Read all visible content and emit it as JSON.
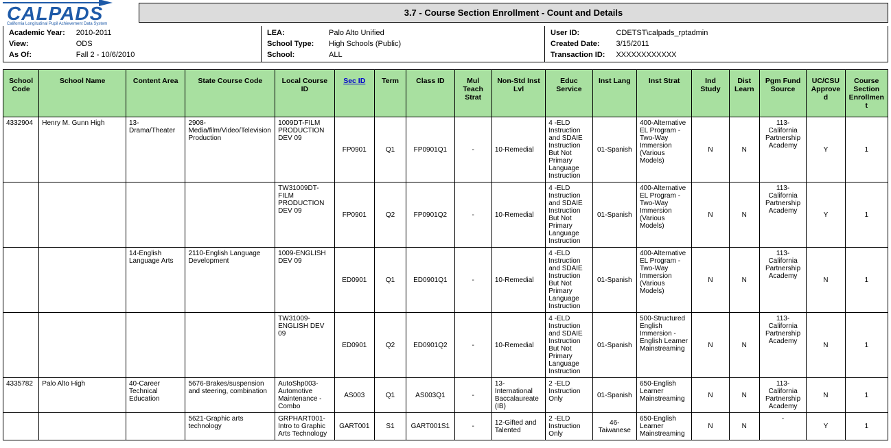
{
  "app": {
    "logo_text": "CALPADS",
    "logo_sub": "California Longitudinal Pupil Achievement Data System",
    "report_title": "3.7 - Course Section Enrollment - Count and Details"
  },
  "meta": {
    "col1": [
      {
        "label": "Academic Year:",
        "value": "2010-2011"
      },
      {
        "label": "View:",
        "value": "ODS"
      },
      {
        "label": "As Of:",
        "value": "Fall 2 - 10/6/2010"
      }
    ],
    "col2": [
      {
        "label": "LEA:",
        "value": "Palo Alto Unified"
      },
      {
        "label": "School Type:",
        "value": "High Schools (Public)"
      },
      {
        "label": "School:",
        "value": "ALL"
      }
    ],
    "col3": [
      {
        "label": "User ID:",
        "value": "CDETST\\calpads_rptadmin"
      },
      {
        "label": "Created Date:",
        "value": "3/15/2011"
      },
      {
        "label": "Transaction ID:",
        "value": "XXXXXXXXXXXX"
      }
    ]
  },
  "headers": [
    "School Code",
    "School Name",
    "Content Area",
    "State Course Code",
    "Local Course ID",
    "Sec ID",
    "Term",
    "Class ID",
    "Mul Teach Strat",
    "Non-Std Inst Lvl",
    "Educ Service",
    "Inst Lang",
    "Inst Strat",
    "Ind Study",
    "Dist Learn",
    "Pgm Fund Source",
    "UC/CSU Approved",
    "Course Section Enrollment"
  ],
  "rows": [
    {
      "school_code": "4332904",
      "school_name": "Henry M. Gunn High",
      "content_area": "13-Drama/Theater",
      "state_course": "2908-Media/film/Video/Television Production",
      "local_course": "1009DT-FILM PRODUCTION DEV 09",
      "sec_id": "FP0901",
      "term": "Q1",
      "class_id": "FP0901Q1",
      "mul": "-",
      "non_std": "10-Remedial",
      "educ": "4 -ELD Instruction and SDAIE Instruction But Not Primary Language Instruction",
      "lang": "01-Spanish",
      "strat": "400-Alternative EL Program - Two-Way Immersion (Various Models)",
      "ind": "N",
      "dist": "N",
      "pgm": "113-California Partnership Academy",
      "uc": "Y",
      "enr": "1"
    },
    {
      "school_code": "",
      "school_name": "",
      "content_area": "",
      "state_course": "",
      "local_course": "TW31009DT-FILM PRODUCTION DEV 09",
      "sec_id": "FP0901",
      "term": "Q2",
      "class_id": "FP0901Q2",
      "mul": "-",
      "non_std": "10-Remedial",
      "educ": "4 -ELD Instruction and SDAIE Instruction But Not Primary Language Instruction",
      "lang": "01-Spanish",
      "strat": "400-Alternative EL Program - Two-Way Immersion (Various Models)",
      "ind": "N",
      "dist": "N",
      "pgm": "113-California Partnership Academy",
      "uc": "Y",
      "enr": "1"
    },
    {
      "school_code": "",
      "school_name": "",
      "content_area": "14-English Language Arts",
      "state_course": "2110-English Language Development",
      "local_course": "1009-ENGLISH DEV 09",
      "sec_id": "ED0901",
      "term": "Q1",
      "class_id": "ED0901Q1",
      "mul": "-",
      "non_std": "10-Remedial",
      "educ": "4 -ELD Instruction and SDAIE Instruction But Not Primary Language Instruction",
      "lang": "01-Spanish",
      "strat": "400-Alternative EL Program - Two-Way Immersion (Various Models)",
      "ind": "N",
      "dist": "N",
      "pgm": "113-California Partnership Academy",
      "uc": "N",
      "enr": "1"
    },
    {
      "school_code": "",
      "school_name": "",
      "content_area": "",
      "state_course": "",
      "local_course": "TW31009-ENGLISH DEV 09",
      "sec_id": "ED0901",
      "term": "Q2",
      "class_id": "ED0901Q2",
      "mul": "-",
      "non_std": "10-Remedial",
      "educ": "4 -ELD Instruction and SDAIE Instruction But Not Primary Language Instruction",
      "lang": "01-Spanish",
      "strat": "500-Structured English Immersion - English Learner Mainstreaming",
      "ind": "N",
      "dist": "N",
      "pgm": "113-California Partnership Academy",
      "uc": "N",
      "enr": "1"
    },
    {
      "school_code": "4335782",
      "school_name": "Palo Alto High",
      "content_area": "40-Career Technical Education",
      "state_course": "5676-Brakes/suspension and steering, combination",
      "local_course": "AutoShp003-Automotive Maintenance - Combo",
      "sec_id": "AS003",
      "term": "Q1",
      "class_id": "AS003Q1",
      "mul": "-",
      "non_std": "13-International Baccalaureate (IB)",
      "educ": "2 -ELD Instruction Only",
      "lang": "01-Spanish",
      "strat": "650-English Learner Mainstreaming",
      "ind": "N",
      "dist": "N",
      "pgm": "113-California Partnership Academy",
      "uc": "N",
      "enr": "1"
    },
    {
      "school_code": "",
      "school_name": "",
      "content_area": "",
      "state_course": "5621-Graphic arts technology",
      "local_course": "GRPHART001-Intro to Graphic Arts Technology",
      "sec_id": "GART001",
      "term": "S1",
      "class_id": "GART001S1",
      "mul": "-",
      "non_std": "12-Gifted and Talented",
      "educ": "2 -ELD Instruction Only",
      "lang": "46-Taiwanese",
      "strat": "650-English Learner Mainstreaming",
      "ind": "N",
      "dist": "N",
      "pgm": "-",
      "uc": "Y",
      "enr": "1"
    }
  ],
  "colors": {
    "header_bg": "#a8e0a0",
    "title_bg": "#dcdcdc",
    "logo": "#1e5aa8",
    "link": "#0000cc"
  }
}
